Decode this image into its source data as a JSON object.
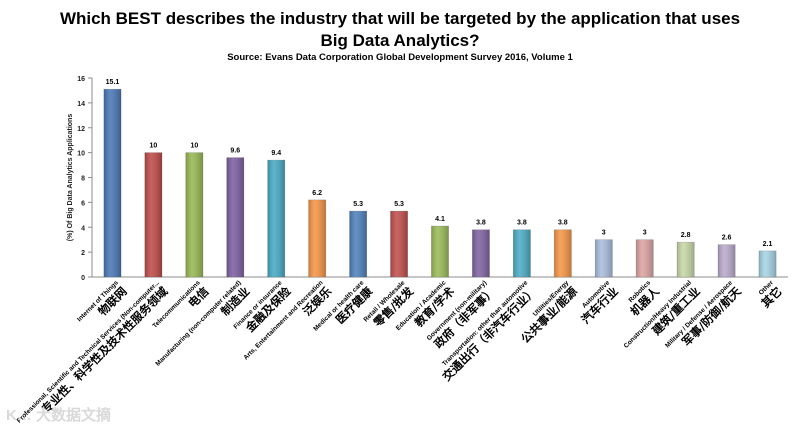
{
  "chart_data": {
    "type": "bar",
    "title_line1": "Which BEST describes the industry that will be targeted by the application that uses",
    "title_line2": "Big Data Analytics?",
    "subtitle": "Source: Evans Data Corporation Global Development Survey 2016, Volume 1",
    "ylabel": "(%) Of Big Data Analytics Applications",
    "ylim": [
      0,
      16
    ],
    "yticks": [
      0,
      2,
      4,
      6,
      8,
      10,
      12,
      14,
      16
    ],
    "grid": false,
    "categories": [
      {
        "en": "Internet of Things",
        "zh": "物联网",
        "value": 15.1,
        "label": "15.1",
        "color": "#4a78b6"
      },
      {
        "en": "Professional, Scientific and Technical Services (Non-computer...",
        "zh": "专业性、科学性及技术性服务领域",
        "value": 10,
        "label": "10",
        "color": "#be4b48"
      },
      {
        "en": "Telecommunications",
        "zh": "电信",
        "value": 10,
        "label": "10",
        "color": "#98b954"
      },
      {
        "en": "Manufacturing (non-computer related)",
        "zh": "制造业",
        "value": 9.6,
        "label": "9.6",
        "color": "#7d60a0"
      },
      {
        "en": "Finance or insurance",
        "zh": "金融及保险",
        "value": 9.4,
        "label": "9.4",
        "color": "#46aac5"
      },
      {
        "en": "Arts, Entertainment and Recreation",
        "zh": "泛娱乐",
        "value": 6.2,
        "label": "6.2",
        "color": "#f69546"
      },
      {
        "en": "Medical or health care",
        "zh": "医疗健康",
        "value": 5.3,
        "label": "5.3",
        "color": "#4f81bd"
      },
      {
        "en": "Retail / Wholesale",
        "zh": "零售/批发",
        "value": 5.3,
        "label": "5.3",
        "color": "#c0504d"
      },
      {
        "en": "Education / Academic",
        "zh": "教育/学术",
        "value": 4.1,
        "label": "4.1",
        "color": "#9bbb59"
      },
      {
        "en": "Government (non-military)",
        "zh": "政府（非军事）",
        "value": 3.8,
        "label": "3.8",
        "color": "#8064a2"
      },
      {
        "en": "Transportation: other than automotive",
        "zh": "交通出行（非汽车行业）",
        "value": 3.8,
        "label": "3.8",
        "color": "#4bacc6"
      },
      {
        "en": "Utilities/Energy",
        "zh": "公共事业/能源",
        "value": 3.8,
        "label": "3.8",
        "color": "#f79646"
      },
      {
        "en": "Automotive",
        "zh": "汽车行业",
        "value": 3,
        "label": "3",
        "color": "#a9bddd"
      },
      {
        "en": "Robotics",
        "zh": "机器人",
        "value": 3,
        "label": "3",
        "color": "#dca4a3"
      },
      {
        "en": "Construction/Heavy Industrial",
        "zh": "建筑/重工业",
        "value": 2.8,
        "label": "2.8",
        "color": "#c8d8a8"
      },
      {
        "en": "Military / Defense / Aerospace",
        "zh": "军事/防御/航天",
        "value": 2.6,
        "label": "2.6",
        "color": "#b9abcd"
      },
      {
        "en": "Other",
        "zh": "其它",
        "value": 2.1,
        "label": "2.1",
        "color": "#a6d4e4"
      }
    ]
  },
  "watermark": "K… 大数据文摘"
}
